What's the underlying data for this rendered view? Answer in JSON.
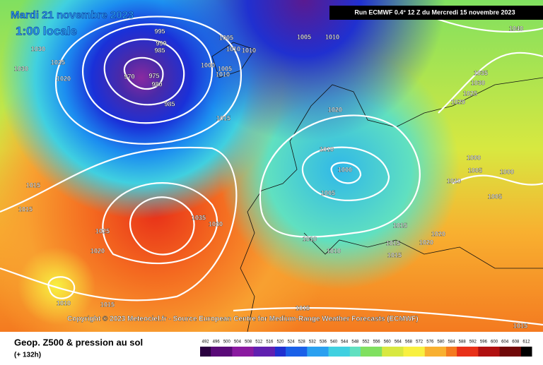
{
  "header": {
    "date": "Mardi 21 novembre 2023",
    "time": "1:00 locale",
    "run": "Run ECMWF 0.4° 12 Z du Mercredi 15 novembre 2023"
  },
  "copyright": "Copyright © 2023 Meteociel.fr - Source European Centre for Medium-Range Weather Forecasts (ECMWF)",
  "footer": {
    "title": "Geop. Z500 & pression au sol",
    "lead": "(+ 132h)"
  },
  "colorbar": {
    "ticks": [
      492,
      496,
      500,
      504,
      508,
      512,
      516,
      520,
      524,
      528,
      532,
      536,
      540,
      544,
      548,
      552,
      556,
      560,
      564,
      568,
      572,
      576,
      580,
      584,
      588,
      592,
      596,
      600,
      604,
      608,
      612
    ]
  },
  "isobar_labels": [
    "995",
    "990",
    "985",
    "975",
    "980",
    "970",
    "985",
    "1005",
    "1010",
    "1010",
    "1030",
    "1025",
    "1030",
    "1020",
    "1000",
    "1005",
    "1010",
    "1015",
    "1005",
    "1010",
    "1040",
    "1035",
    "1030",
    "1025",
    "1020",
    "1020",
    "1010",
    "1000",
    "1005",
    "1015",
    "1015",
    "1025",
    "1020",
    "1035",
    "1030",
    "1010",
    "1010",
    "1015",
    "1015",
    "1015",
    "1020",
    "1020",
    "1010",
    "1000",
    "1005",
    "1000",
    "1005",
    "1010",
    "1015",
    "1015",
    "1015"
  ]
}
